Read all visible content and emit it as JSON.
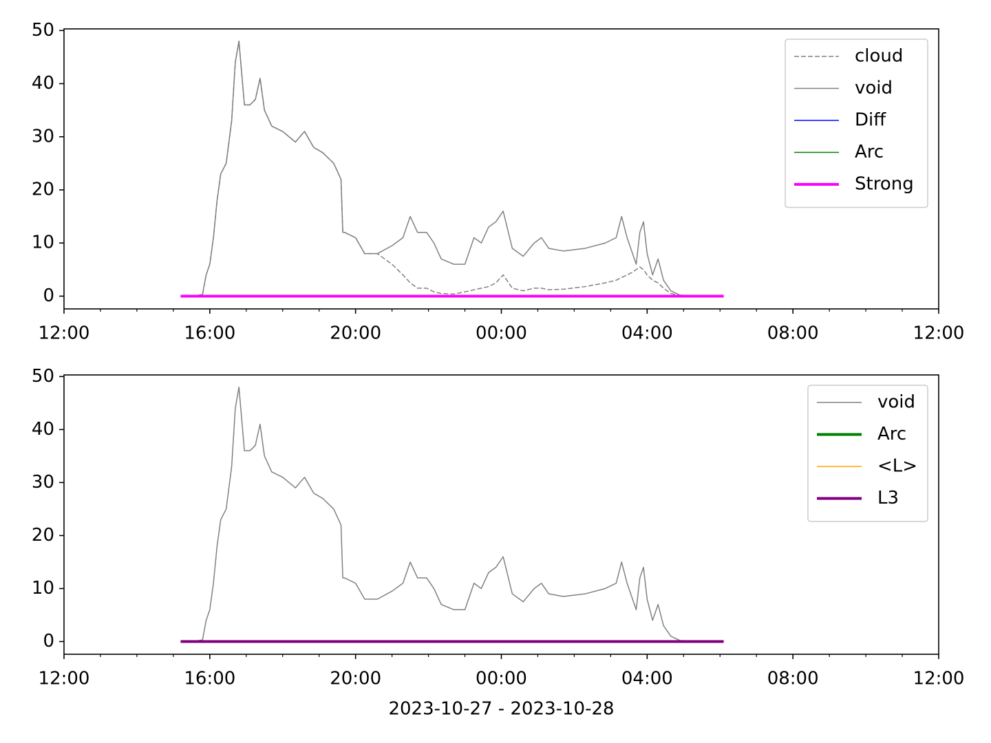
{
  "chart_data": [
    {
      "type": "line",
      "x": [
        15.25,
        15.5,
        15.8,
        15.9,
        16.0,
        16.1,
        16.2,
        16.3,
        16.45,
        16.6,
        16.7,
        16.8,
        16.9,
        16.95,
        17.1,
        17.25,
        17.38,
        17.5,
        17.7,
        18.0,
        18.35,
        18.6,
        18.85,
        19.1,
        19.4,
        19.6,
        19.65,
        19.7,
        20.0,
        20.25,
        20.6,
        21.0,
        21.3,
        21.5,
        21.7,
        21.95,
        22.15,
        22.35,
        22.7,
        23.0,
        23.25,
        23.45,
        23.65,
        23.85,
        24.05,
        24.3,
        24.6,
        24.9,
        25.1,
        25.3,
        25.7,
        26.3,
        26.85,
        27.15,
        27.3,
        27.45,
        27.6,
        27.7,
        27.8,
        27.9,
        28.0,
        28.15,
        28.3,
        28.45,
        28.65,
        28.9,
        29.5,
        30.1
      ],
      "series": [
        {
          "name": "cloud",
          "color": "#808080",
          "dashed": true,
          "linewidth": 1.5,
          "values": [
            0,
            0,
            0.3,
            4,
            6,
            11,
            18,
            23,
            25,
            33,
            44,
            48,
            40,
            36,
            36,
            37,
            41,
            35,
            32,
            31,
            29,
            31,
            28,
            27,
            25,
            22,
            12,
            12,
            11,
            8,
            8,
            6,
            4,
            2.5,
            1.5,
            1.5,
            0.8,
            0.5,
            0.4,
            0.8,
            1.2,
            1.5,
            1.8,
            2.5,
            4,
            1.5,
            1,
            1.5,
            1.5,
            1.2,
            1.3,
            1.8,
            2.5,
            3,
            3.5,
            4,
            4.5,
            5,
            5.5,
            5,
            4,
            3,
            2.5,
            1.5,
            0.5,
            0.1,
            0,
            0
          ]
        },
        {
          "name": "void",
          "color": "#808080",
          "linewidth": 1.5,
          "values": [
            0,
            0,
            0.3,
            4,
            6,
            11,
            18,
            23,
            25,
            33,
            44,
            48,
            40,
            36,
            36,
            37,
            41,
            35,
            32,
            31,
            29,
            31,
            28,
            27,
            25,
            22,
            12,
            12,
            11,
            8,
            8,
            9.5,
            11,
            15,
            12,
            12,
            10,
            7,
            6,
            6,
            11,
            10,
            13,
            14,
            16,
            9,
            7.5,
            10,
            11,
            9,
            8.5,
            9,
            10,
            11,
            15,
            11,
            8,
            6,
            12,
            14,
            8,
            4,
            7,
            3,
            1,
            0.2,
            0,
            0
          ]
        },
        {
          "name": "Diff",
          "color": "#0000ff",
          "linewidth": 1.5,
          "x": [
            15.2,
            30.1
          ],
          "values": [
            0,
            0
          ]
        },
        {
          "name": "Arc",
          "color": "#008000",
          "linewidth": 1.5,
          "x": [
            15.2,
            30.1
          ],
          "values": [
            0,
            0
          ]
        },
        {
          "name": "Strong",
          "color": "#ff00ff",
          "linewidth": 4,
          "x": [
            15.2,
            30.1
          ],
          "values": [
            0,
            0
          ]
        }
      ],
      "xlim": [
        12,
        36
      ],
      "xticks": [
        {
          "value": 12,
          "label": "12:00"
        },
        {
          "value": 16,
          "label": "16:00"
        },
        {
          "value": 20,
          "label": "20:00"
        },
        {
          "value": 24,
          "label": "00:00"
        },
        {
          "value": 28,
          "label": "04:00"
        },
        {
          "value": 32,
          "label": "08:00"
        },
        {
          "value": 36,
          "label": "12:00"
        }
      ],
      "xminorticks": [
        13,
        14,
        15,
        17,
        18,
        19,
        21,
        22,
        23,
        25,
        26,
        27,
        29,
        30,
        31,
        33,
        34,
        35
      ],
      "ylim": [
        -2.4,
        50.3
      ],
      "yticks": [
        0,
        10,
        20,
        30,
        40,
        50
      ],
      "grid": false,
      "legend": "upper right"
    },
    {
      "type": "line",
      "x": [
        15.25,
        15.5,
        15.8,
        15.9,
        16.0,
        16.1,
        16.2,
        16.3,
        16.45,
        16.6,
        16.7,
        16.8,
        16.9,
        16.95,
        17.1,
        17.25,
        17.38,
        17.5,
        17.7,
        18.0,
        18.35,
        18.6,
        18.85,
        19.1,
        19.4,
        19.6,
        19.65,
        19.7,
        20.0,
        20.25,
        20.6,
        21.0,
        21.3,
        21.5,
        21.7,
        21.95,
        22.15,
        22.35,
        22.7,
        23.0,
        23.25,
        23.45,
        23.65,
        23.85,
        24.05,
        24.3,
        24.6,
        24.9,
        25.1,
        25.3,
        25.7,
        26.3,
        26.85,
        27.15,
        27.3,
        27.45,
        27.6,
        27.7,
        27.8,
        27.9,
        28.0,
        28.15,
        28.3,
        28.45,
        28.65,
        28.9,
        29.5,
        30.1
      ],
      "series": [
        {
          "name": "void",
          "color": "#808080",
          "linewidth": 1.5,
          "values": [
            0,
            0,
            0.3,
            4,
            6,
            11,
            18,
            23,
            25,
            33,
            44,
            48,
            40,
            36,
            36,
            37,
            41,
            35,
            32,
            31,
            29,
            31,
            28,
            27,
            25,
            22,
            12,
            12,
            11,
            8,
            8,
            9.5,
            11,
            15,
            12,
            12,
            10,
            7,
            6,
            6,
            11,
            10,
            13,
            14,
            16,
            9,
            7.5,
            10,
            11,
            9,
            8.5,
            9,
            10,
            11,
            15,
            11,
            8,
            6,
            12,
            14,
            8,
            4,
            7,
            3,
            1,
            0.2,
            0,
            0
          ]
        },
        {
          "name": "Arc",
          "color": "#008000",
          "linewidth": 4,
          "x": [
            15.2,
            30.1
          ],
          "values": [
            0,
            0
          ]
        },
        {
          "name": "<L>",
          "color": "#ffa500",
          "linewidth": 1.5,
          "x": [
            15.2,
            30.1
          ],
          "values": [
            0,
            0
          ]
        },
        {
          "name": "L3",
          "color": "#800080",
          "linewidth": 4,
          "x": [
            15.2,
            30.1
          ],
          "values": [
            0,
            0
          ]
        }
      ],
      "xlabel": "2023-10-27 - 2023-10-28",
      "xlim": [
        12,
        36
      ],
      "xticks": [
        {
          "value": 12,
          "label": "12:00"
        },
        {
          "value": 16,
          "label": "16:00"
        },
        {
          "value": 20,
          "label": "20:00"
        },
        {
          "value": 24,
          "label": "00:00"
        },
        {
          "value": 28,
          "label": "04:00"
        },
        {
          "value": 32,
          "label": "08:00"
        },
        {
          "value": 36,
          "label": "12:00"
        }
      ],
      "xminorticks": [
        13,
        14,
        15,
        17,
        18,
        19,
        21,
        22,
        23,
        25,
        26,
        27,
        29,
        30,
        31,
        33,
        34,
        35
      ],
      "ylim": [
        -2.4,
        50.3
      ],
      "yticks": [
        0,
        10,
        20,
        30,
        40,
        50
      ],
      "grid": false,
      "legend": "upper right"
    }
  ]
}
